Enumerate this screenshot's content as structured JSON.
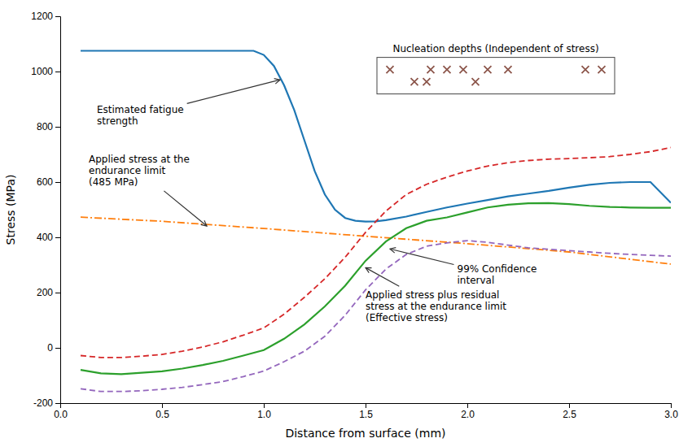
{
  "chart_data": {
    "type": "line",
    "xlabel": "Distance from surface (mm)",
    "ylabel": "Stress (MPa)",
    "xlim": [
      0.0,
      3.0
    ],
    "ylim": [
      -200,
      1200
    ],
    "xticks": [
      {
        "value": 0.0,
        "label": "0.0"
      },
      0.5,
      {
        "value": 1.0,
        "label": "1.0"
      },
      1.5,
      {
        "value": 2.0,
        "label": "2.0"
      },
      2.5,
      {
        "value": 3.0,
        "label": "3.0"
      }
    ],
    "yticks": [
      -200,
      0,
      200,
      400,
      600,
      800,
      1000,
      1200
    ],
    "series": [
      {
        "type": "line",
        "line_style": "solid",
        "x": [
          0.1,
          0.2,
          0.3,
          0.4,
          0.5,
          0.6,
          0.7,
          0.8,
          0.9,
          0.95,
          1.0,
          1.05,
          1.1,
          1.15,
          1.2,
          1.25,
          1.3,
          1.35,
          1.4,
          1.45,
          1.5,
          1.55,
          1.6,
          1.7,
          1.8,
          1.9,
          2.0,
          2.1,
          2.2,
          2.3,
          2.4,
          2.5,
          2.6,
          2.7,
          2.8,
          2.9,
          3.0
        ],
        "values": [
          1075,
          1075,
          1075,
          1075,
          1075,
          1075,
          1075,
          1075,
          1075,
          1075,
          1060,
          1020,
          950,
          860,
          750,
          640,
          555,
          500,
          470,
          460,
          457,
          458,
          462,
          475,
          492,
          508,
          522,
          535,
          548,
          558,
          568,
          580,
          590,
          597,
          600,
          600,
          525
        ]
      },
      {
        "type": "line",
        "line_style": "dashdot",
        "x": [
          0.1,
          0.5,
          1.0,
          1.5,
          2.0,
          2.5,
          3.0
        ],
        "values": [
          473,
          458,
          432,
          404,
          377,
          347,
          303
        ]
      },
      {
        "type": "line",
        "line_style": "solid",
        "x": [
          0.1,
          0.2,
          0.3,
          0.4,
          0.5,
          0.6,
          0.7,
          0.8,
          0.9,
          1.0,
          1.1,
          1.2,
          1.3,
          1.4,
          1.5,
          1.6,
          1.7,
          1.8,
          1.9,
          2.0,
          2.1,
          2.2,
          2.3,
          2.4,
          2.5,
          2.6,
          2.7,
          2.8,
          2.9,
          3.0
        ],
        "values": [
          -80,
          -92,
          -95,
          -90,
          -85,
          -75,
          -62,
          -47,
          -28,
          -8,
          33,
          85,
          150,
          225,
          315,
          385,
          433,
          460,
          472,
          490,
          508,
          518,
          523,
          524,
          520,
          514,
          510,
          508,
          507,
          507
        ]
      },
      {
        "type": "line",
        "line_style": "dashed",
        "x": [
          0.1,
          0.2,
          0.3,
          0.4,
          0.5,
          0.6,
          0.7,
          0.8,
          0.9,
          1.0,
          1.1,
          1.2,
          1.3,
          1.4,
          1.5,
          1.6,
          1.7,
          1.8,
          1.9,
          2.0,
          2.1,
          2.2,
          2.3,
          2.4,
          2.5,
          2.6,
          2.7,
          2.8,
          2.9,
          3.0
        ],
        "values": [
          -28,
          -35,
          -35,
          -30,
          -24,
          -12,
          3,
          22,
          46,
          72,
          122,
          183,
          250,
          328,
          418,
          495,
          555,
          592,
          618,
          640,
          658,
          670,
          678,
          683,
          685,
          688,
          692,
          700,
          710,
          725
        ]
      },
      {
        "type": "line",
        "line_style": "dashed",
        "x": [
          0.1,
          0.2,
          0.3,
          0.4,
          0.5,
          0.6,
          0.7,
          0.8,
          0.9,
          1.0,
          1.1,
          1.2,
          1.3,
          1.4,
          1.5,
          1.6,
          1.7,
          1.8,
          1.9,
          2.0,
          2.1,
          2.2,
          2.3,
          2.4,
          2.5,
          2.6,
          2.7,
          2.8,
          2.9,
          3.0
        ],
        "values": [
          -148,
          -158,
          -158,
          -155,
          -150,
          -143,
          -133,
          -122,
          -104,
          -84,
          -50,
          -12,
          42,
          118,
          210,
          285,
          338,
          368,
          380,
          388,
          382,
          372,
          362,
          357,
          352,
          347,
          342,
          338,
          335,
          332
        ]
      },
      {
        "type": "scatter",
        "marker": "x",
        "x": [
          1.62,
          1.82,
          1.9,
          1.98,
          2.1,
          2.2,
          2.58,
          2.66
        ],
        "values": [
          1007,
          1007,
          1007,
          1007,
          1007,
          1007,
          1007,
          1007
        ]
      },
      {
        "type": "scatter",
        "marker": "x",
        "x": [
          1.74,
          1.8,
          2.04
        ],
        "values": [
          963,
          963,
          963
        ]
      }
    ],
    "annotations": [
      {
        "text": "Nucleation depths (Independent of stress)"
      },
      {
        "text": "Estimated fatigue\nstrength",
        "x": 1.08,
        "y": 970,
        "text_x": 0.18,
        "text_y": 840
      },
      {
        "text": "Applied stress at the\nendurance limit\n(485 MPa)",
        "x": 0.72,
        "y": 441,
        "text_x": 0.14,
        "text_y": 640
      },
      {
        "text": "99% Confidence\ninterval",
        "x": 1.62,
        "y": 358,
        "text_x": 1.95,
        "text_y": 262
      },
      {
        "text": "Applied stress plus residual\nstress at the endurance limit\n(Effective stress)",
        "x": 1.5,
        "y": 290,
        "text_x": 1.5,
        "text_y": 148
      }
    ]
  }
}
